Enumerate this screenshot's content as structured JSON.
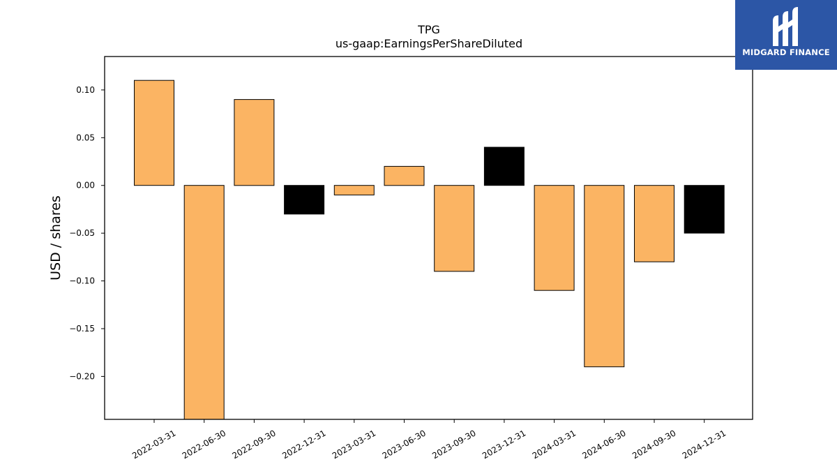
{
  "chart_data": {
    "type": "bar",
    "title": "TPG",
    "subtitle": "us-gaap:EarningsPerShareDiluted",
    "xlabel": "",
    "ylabel": "USD / shares",
    "categories": [
      "2022-03-31",
      "2022-06-30",
      "2022-09-30",
      "2022-12-31",
      "2023-03-31",
      "2023-06-30",
      "2023-09-30",
      "2023-12-31",
      "2024-03-31",
      "2024-06-30",
      "2024-09-30",
      "2024-12-31"
    ],
    "values": [
      0.11,
      -0.25,
      0.09,
      -0.03,
      -0.01,
      0.02,
      -0.09,
      0.04,
      -0.11,
      -0.19,
      -0.08,
      -0.05
    ],
    "bar_colors": [
      "#fbb463",
      "#fbb463",
      "#fbb463",
      "#000000",
      "#fbb463",
      "#fbb463",
      "#fbb463",
      "#000000",
      "#fbb463",
      "#fbb463",
      "#fbb463",
      "#000000"
    ],
    "ylim": [
      -0.245,
      0.135
    ],
    "yticks": [
      0.1,
      0.05,
      0.0,
      -0.05,
      -0.1,
      -0.15,
      -0.2
    ],
    "ytick_labels": [
      "0.10",
      "0.05",
      "0.00",
      "−0.05",
      "−0.10",
      "−0.15",
      "−0.20"
    ],
    "grid": false,
    "legend": "none"
  },
  "logo": {
    "text": "MIDGARD FINANCE",
    "background": "#2c56a6",
    "icon": "midgard-logo-icon"
  }
}
